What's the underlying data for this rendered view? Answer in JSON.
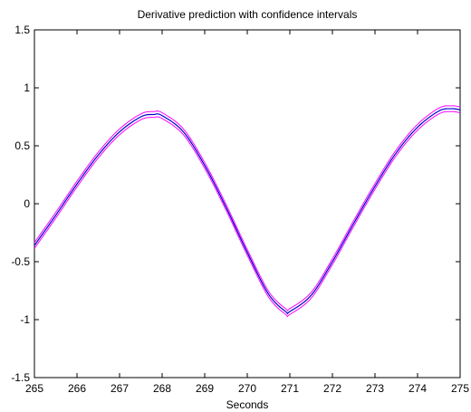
{
  "chart_data": {
    "type": "line",
    "title": "Derivative prediction with confidence intervals",
    "xlabel": "Seconds",
    "ylabel": "",
    "xlim": [
      265,
      275
    ],
    "ylim": [
      -1.5,
      1.5
    ],
    "xticks": [
      265,
      266,
      267,
      268,
      269,
      270,
      271,
      272,
      273,
      274,
      275
    ],
    "yticks": [
      -1.5,
      -1,
      -0.5,
      0,
      0.5,
      1,
      1.5
    ],
    "grid": false,
    "confidence_halfwidth": 0.025,
    "colors": {
      "prediction": "#0000cc",
      "confidence": "#ff00ff"
    },
    "series": [
      {
        "x": [
          265,
          265.5,
          266,
          266.5,
          267,
          267.5,
          267.8,
          268,
          268.5,
          269,
          269.5,
          270,
          270.5,
          270.9,
          271,
          271.5,
          272,
          272.5,
          273,
          273.5,
          274,
          274.5,
          274.8,
          275
        ],
        "y": [
          -0.36,
          -0.1,
          0.17,
          0.42,
          0.62,
          0.75,
          0.77,
          0.76,
          0.62,
          0.33,
          -0.03,
          -0.42,
          -0.78,
          -0.93,
          -0.93,
          -0.79,
          -0.5,
          -0.17,
          0.15,
          0.44,
          0.66,
          0.8,
          0.82,
          0.81
        ]
      }
    ]
  }
}
